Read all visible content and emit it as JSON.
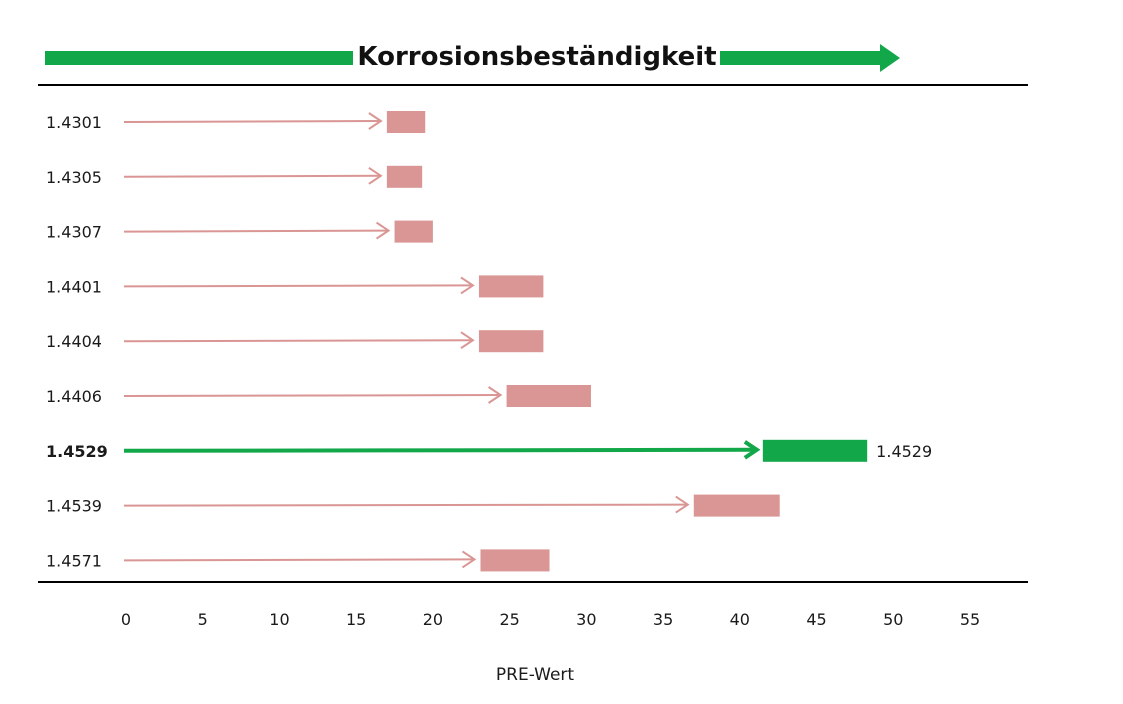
{
  "chart_data": {
    "type": "bar",
    "title": "Korrosionsbeständigkeit",
    "xlabel": "PRE-Wert",
    "ylabel": "",
    "xlim": [
      0,
      55
    ],
    "xticks": [
      "0",
      "5",
      "10",
      "15",
      "20",
      "25",
      "30",
      "35",
      "40",
      "45",
      "50",
      "55"
    ],
    "grid": false,
    "colors": {
      "normal": "#d99694",
      "highlight": "#12a84a",
      "arrow": "#12a84a",
      "rule": "#000000"
    },
    "highlight_label": "1.4529",
    "rows": [
      {
        "label": "1.4301",
        "min": 17,
        "max": 19.5,
        "highlight": false
      },
      {
        "label": "1.4305",
        "min": 17,
        "max": 19.3,
        "highlight": false
      },
      {
        "label": "1.4307",
        "min": 17.5,
        "max": 20,
        "highlight": false
      },
      {
        "label": "1.4401",
        "min": 23,
        "max": 27.2,
        "highlight": false
      },
      {
        "label": "1.4404",
        "min": 23,
        "max": 27.2,
        "highlight": false
      },
      {
        "label": "1.4406",
        "min": 24.8,
        "max": 30.3,
        "highlight": false
      },
      {
        "label": "1.4529",
        "min": 41.5,
        "max": 48.3,
        "highlight": true
      },
      {
        "label": "1.4539",
        "min": 37,
        "max": 42.6,
        "highlight": false
      },
      {
        "label": "1.4571",
        "min": 23.1,
        "max": 27.6,
        "highlight": false
      }
    ]
  }
}
